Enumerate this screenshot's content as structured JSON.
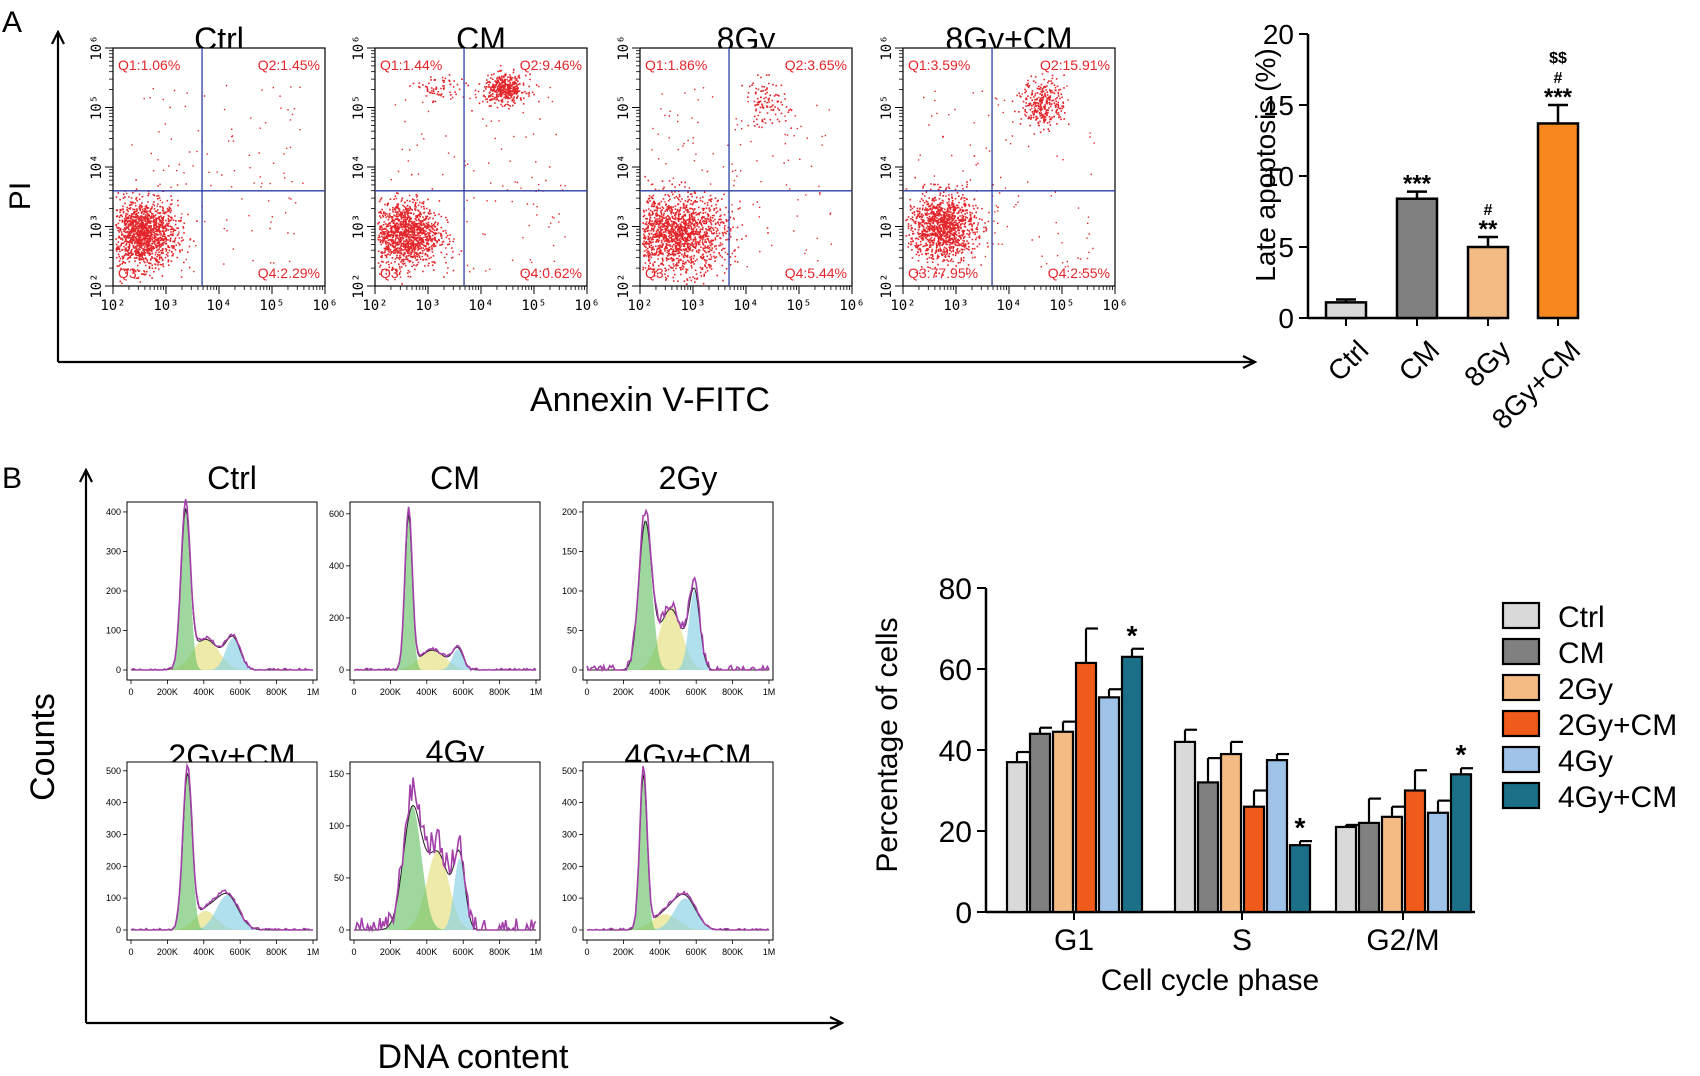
{
  "panel_letters": {
    "a": "A",
    "b": "B"
  },
  "panel_a": {
    "y_axis_label": "PI",
    "x_axis_label": "Annexin V-FITC",
    "decade_ticks": [
      "10²",
      "10³",
      "10⁴",
      "10⁵",
      "10⁶"
    ],
    "plots": [
      {
        "title": "Ctrl",
        "q1": "Q1:1.06%",
        "q2": "Q2:1.45%",
        "q3": "Q3:",
        "q4": "Q4:2.29%"
      },
      {
        "title": "CM",
        "q1": "Q1:1.44%",
        "q2": "Q2:9.46%",
        "q3": "Q3:",
        "q4": "Q4:0.62%"
      },
      {
        "title": "8Gy",
        "q1": "Q1:1.86%",
        "q2": "Q2:3.65%",
        "q3": "Q3:",
        "q4": "Q4:5.44%"
      },
      {
        "title": "8Gy+CM",
        "q1": "Q1:3.59%",
        "q2": "Q2:15.91%",
        "q3": "Q3:77.95%",
        "q4": "Q4:2.55%"
      }
    ]
  },
  "panel_b": {
    "y_axis_label": "Counts",
    "x_axis_label": "DNA content",
    "x_ticks": [
      "0",
      "200K",
      "400K",
      "600K",
      "800K",
      "1M"
    ],
    "histograms": [
      {
        "title": "Ctrl",
        "y_ticks": [
          "0",
          "100",
          "200",
          "300",
          "400"
        ]
      },
      {
        "title": "CM",
        "y_ticks": [
          "0",
          "200",
          "400",
          "600"
        ]
      },
      {
        "title": "2Gy",
        "y_ticks": [
          "0",
          "50",
          "100",
          "150",
          "200"
        ]
      },
      {
        "title": "2Gy+CM",
        "y_ticks": [
          "0",
          "100",
          "200",
          "300",
          "400",
          "500"
        ]
      },
      {
        "title": "4Gy",
        "y_ticks": [
          "0",
          "50",
          "100",
          "150"
        ]
      },
      {
        "title": "4Gy+CM",
        "y_ticks": [
          "0",
          "100",
          "200",
          "300",
          "400",
          "500"
        ]
      }
    ]
  },
  "chart_data": [
    {
      "type": "bar",
      "title": "",
      "xlabel": "",
      "ylabel": "Late apoptosis (%)",
      "ylim": [
        0,
        20
      ],
      "yticks": [
        "0",
        "5",
        "10",
        "15",
        "20"
      ],
      "categories": [
        "Ctrl",
        "CM",
        "8Gy",
        "8Gy+CM"
      ],
      "values": [
        1.1,
        8.4,
        5.0,
        13.7
      ],
      "errors": [
        0.2,
        0.5,
        0.7,
        1.3
      ],
      "colors": [
        "#d9d9d9",
        "#808080",
        "#f4bb85",
        "#f7871f"
      ],
      "annotations": [
        [],
        [
          "***"
        ],
        [
          "**",
          "#"
        ],
        [
          "***",
          "#",
          "$$"
        ]
      ]
    },
    {
      "type": "bar",
      "title": "",
      "xlabel": "Cell cycle phase",
      "ylabel": "Percentage of cells",
      "ylim": [
        0,
        80
      ],
      "yticks": [
        "0",
        "20",
        "40",
        "60",
        "80"
      ],
      "categories": [
        "G1",
        "S",
        "G2/M"
      ],
      "series": [
        {
          "name": "Ctrl",
          "color": "#d9d9d9",
          "values": [
            37,
            42,
            21
          ],
          "errors": [
            2.5,
            3,
            0.5
          ]
        },
        {
          "name": "CM",
          "color": "#808080",
          "values": [
            44,
            32,
            22
          ],
          "errors": [
            1.5,
            6,
            6
          ]
        },
        {
          "name": "2Gy",
          "color": "#f4bb85",
          "values": [
            44.5,
            39,
            23.5
          ],
          "errors": [
            2.5,
            3,
            2.5
          ]
        },
        {
          "name": "2Gy+CM",
          "color": "#f05a1a",
          "values": [
            61.5,
            26,
            30
          ],
          "errors": [
            8.5,
            4,
            5
          ]
        },
        {
          "name": "4Gy",
          "color": "#9ec2e8",
          "values": [
            53,
            37.5,
            24.5
          ],
          "errors": [
            2,
            1.5,
            3
          ]
        },
        {
          "name": "4Gy+CM",
          "color": "#1b6f86",
          "values": [
            63,
            16.5,
            34
          ],
          "errors": [
            2,
            1,
            1.5
          ]
        }
      ],
      "annotations": [
        {
          "category": "G1",
          "series": "4Gy+CM",
          "text": "*"
        },
        {
          "category": "S",
          "series": "4Gy+CM",
          "text": "*"
        },
        {
          "category": "G2/M",
          "series": "4Gy+CM",
          "text": "*"
        }
      ],
      "legend_position": "right"
    }
  ]
}
